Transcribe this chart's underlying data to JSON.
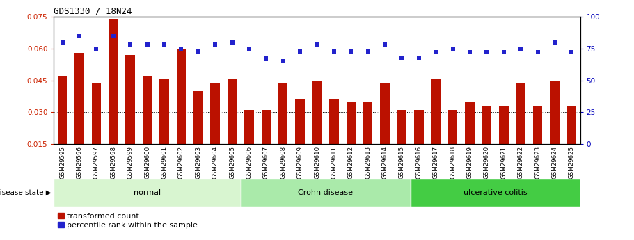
{
  "title": "GDS1330 / 18N24",
  "categories": [
    "GSM29595",
    "GSM29596",
    "GSM29597",
    "GSM29598",
    "GSM29599",
    "GSM29600",
    "GSM29601",
    "GSM29602",
    "GSM29603",
    "GSM29604",
    "GSM29605",
    "GSM29606",
    "GSM29607",
    "GSM29608",
    "GSM29609",
    "GSM29610",
    "GSM29611",
    "GSM29612",
    "GSM29613",
    "GSM29614",
    "GSM29615",
    "GSM29616",
    "GSM29617",
    "GSM29618",
    "GSM29619",
    "GSM29620",
    "GSM29621",
    "GSM29622",
    "GSM29623",
    "GSM29624",
    "GSM29625"
  ],
  "bar_values": [
    0.047,
    0.058,
    0.044,
    0.074,
    0.057,
    0.047,
    0.046,
    0.06,
    0.04,
    0.044,
    0.046,
    0.031,
    0.031,
    0.044,
    0.036,
    0.045,
    0.036,
    0.035,
    0.035,
    0.044,
    0.031,
    0.031,
    0.046,
    0.031,
    0.035,
    0.033,
    0.033,
    0.044,
    0.033,
    0.045,
    0.033
  ],
  "percentile_values": [
    80,
    85,
    75,
    85,
    78,
    78,
    78,
    75,
    73,
    78,
    80,
    75,
    67,
    65,
    73,
    78,
    73,
    73,
    73,
    78,
    68,
    68,
    72,
    75,
    72,
    72,
    72,
    75,
    72,
    80,
    72
  ],
  "bar_color": "#BB1100",
  "dot_color": "#2222CC",
  "groups": [
    {
      "label": "normal",
      "start": 0,
      "end": 10,
      "color": "#D8F5D0"
    },
    {
      "label": "Crohn disease",
      "start": 11,
      "end": 20,
      "color": "#AAEAAA"
    },
    {
      "label": "ulcerative colitis",
      "start": 21,
      "end": 30,
      "color": "#44CC44"
    }
  ],
  "ylim_left": [
    0.015,
    0.075
  ],
  "ylim_right": [
    0,
    100
  ],
  "yticks_left": [
    0.015,
    0.03,
    0.045,
    0.06,
    0.075
  ],
  "yticks_right": [
    0,
    25,
    50,
    75,
    100
  ],
  "left_color": "#CC2200",
  "right_color": "#0000BB",
  "legend_items": [
    "transformed count",
    "percentile rank within the sample"
  ],
  "disease_state_label": "disease state",
  "background_color": "#ffffff"
}
